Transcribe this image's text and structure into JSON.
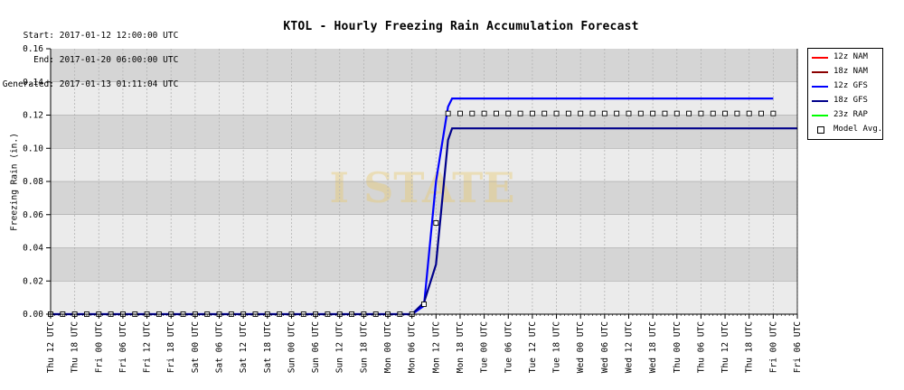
{
  "meta": {
    "start_key": "Start:",
    "start_value": "2017-01-12 12:00:00 UTC",
    "end_key": "End:",
    "end_value": "2017-01-20 06:00:00 UTC",
    "generated_key": "Generated:",
    "generated_value": "2017-01-13 01:11:04 UTC"
  },
  "watermark": "I STATE",
  "chart_data": {
    "type": "line",
    "title": "KTOL - Hourly Freezing Rain Accumulation Forecast",
    "ylabel": "Freezing Rain (in.)",
    "xlabel": "",
    "ylim": [
      0,
      0.16
    ],
    "y_ticks": [
      "0.00",
      "0.02",
      "0.04",
      "0.06",
      "0.08",
      "0.10",
      "0.12",
      "0.14",
      "0.16"
    ],
    "x_ticks": [
      "Thu 12 UTC",
      "Thu 18 UTC",
      "Fri 00 UTC",
      "Fri 06 UTC",
      "Fri 12 UTC",
      "Fri 18 UTC",
      "Sat 00 UTC",
      "Sat 06 UTC",
      "Sat 12 UTC",
      "Sat 18 UTC",
      "Sun 00 UTC",
      "Sun 06 UTC",
      "Sun 12 UTC",
      "Sun 18 UTC",
      "Mon 00 UTC",
      "Mon 06 UTC",
      "Mon 12 UTC",
      "Mon 18 UTC",
      "Tue 00 UTC",
      "Tue 06 UTC",
      "Tue 12 UTC",
      "Tue 18 UTC",
      "Wed 00 UTC",
      "Wed 06 UTC",
      "Wed 12 UTC",
      "Wed 18 UTC",
      "Thu 00 UTC",
      "Thu 06 UTC",
      "Thu 12 UTC",
      "Thu 18 UTC",
      "Fri 00 UTC",
      "Fri 06 UTC"
    ],
    "xlim_hours": [
      0,
      186
    ],
    "grid": true,
    "legend_position": "right",
    "series": [
      {
        "name": "12z NAM",
        "color": "#ff0000",
        "points": []
      },
      {
        "name": "18z NAM",
        "color": "#8b0000",
        "points": []
      },
      {
        "name": "12z GFS",
        "color": "#0000ff",
        "points": [
          [
            0,
            0
          ],
          [
            90,
            0
          ],
          [
            93,
            0.005
          ],
          [
            96,
            0.08
          ],
          [
            99,
            0.125
          ],
          [
            100,
            0.13
          ],
          [
            180,
            0.13
          ]
        ]
      },
      {
        "name": "18z GFS",
        "color": "#00008b",
        "points": [
          [
            90,
            0
          ],
          [
            93,
            0.007
          ],
          [
            96,
            0.03
          ],
          [
            99,
            0.105
          ],
          [
            100,
            0.112
          ],
          [
            186,
            0.112
          ]
        ]
      },
      {
        "name": "23z RAP",
        "color": "#00ff00",
        "points": []
      }
    ],
    "model_avg": {
      "name": "Model Avg.",
      "points": [
        [
          0,
          0
        ],
        [
          3,
          0
        ],
        [
          6,
          0
        ],
        [
          9,
          0
        ],
        [
          12,
          0
        ],
        [
          15,
          0
        ],
        [
          18,
          0
        ],
        [
          21,
          0
        ],
        [
          24,
          0
        ],
        [
          27,
          0
        ],
        [
          30,
          0
        ],
        [
          33,
          0
        ],
        [
          36,
          0
        ],
        [
          39,
          0
        ],
        [
          42,
          0
        ],
        [
          45,
          0
        ],
        [
          48,
          0
        ],
        [
          51,
          0
        ],
        [
          54,
          0
        ],
        [
          57,
          0
        ],
        [
          60,
          0
        ],
        [
          63,
          0
        ],
        [
          66,
          0
        ],
        [
          69,
          0
        ],
        [
          72,
          0
        ],
        [
          75,
          0
        ],
        [
          78,
          0
        ],
        [
          81,
          0
        ],
        [
          84,
          0
        ],
        [
          87,
          0
        ],
        [
          90,
          0
        ],
        [
          93,
          0.006
        ],
        [
          96,
          0.055
        ],
        [
          99,
          0.121
        ],
        [
          102,
          0.121
        ],
        [
          105,
          0.121
        ],
        [
          108,
          0.121
        ],
        [
          111,
          0.121
        ],
        [
          114,
          0.121
        ],
        [
          117,
          0.121
        ],
        [
          120,
          0.121
        ],
        [
          123,
          0.121
        ],
        [
          126,
          0.121
        ],
        [
          129,
          0.121
        ],
        [
          132,
          0.121
        ],
        [
          135,
          0.121
        ],
        [
          138,
          0.121
        ],
        [
          141,
          0.121
        ],
        [
          144,
          0.121
        ],
        [
          147,
          0.121
        ],
        [
          150,
          0.121
        ],
        [
          153,
          0.121
        ],
        [
          156,
          0.121
        ],
        [
          159,
          0.121
        ],
        [
          162,
          0.121
        ],
        [
          165,
          0.121
        ],
        [
          168,
          0.121
        ],
        [
          171,
          0.121
        ],
        [
          174,
          0.121
        ],
        [
          177,
          0.121
        ],
        [
          180,
          0.121
        ]
      ]
    }
  }
}
